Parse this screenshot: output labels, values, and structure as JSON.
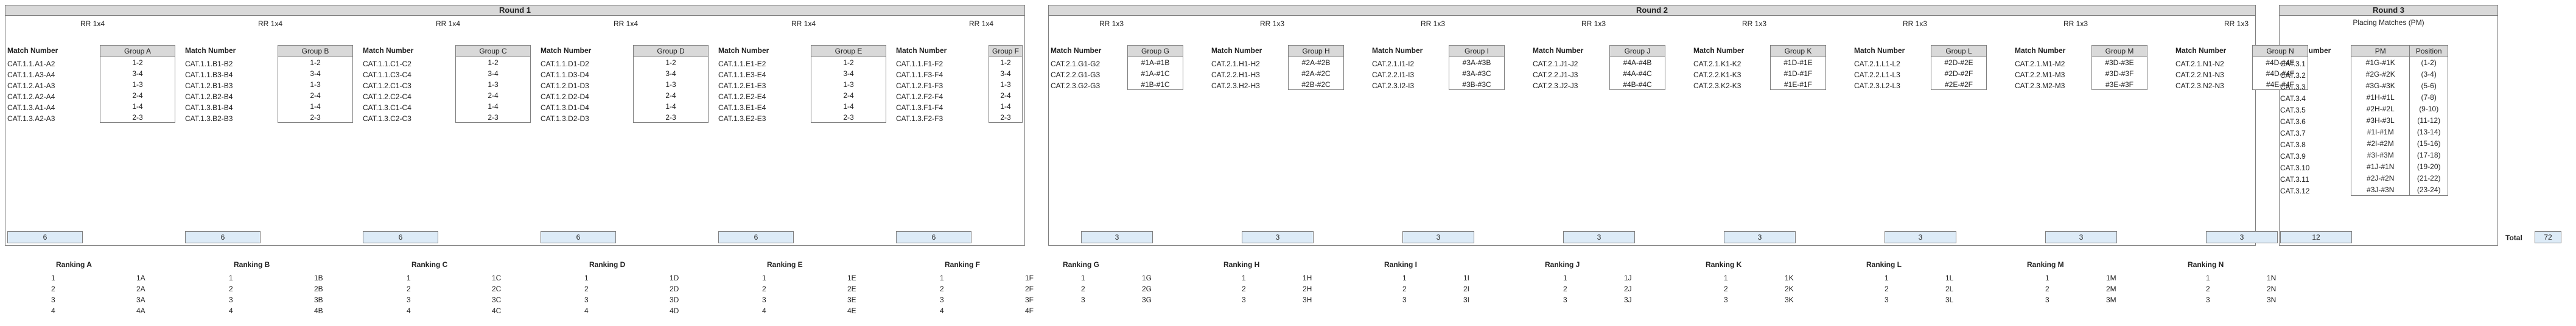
{
  "colors": {
    "header_bg": "#d9d9d9",
    "border": "#7f7f7f",
    "count_bg": "#ddebf7"
  },
  "rounds": [
    {
      "title": "Round 1"
    },
    {
      "title": "Round 2"
    },
    {
      "title": "Round 3"
    }
  ],
  "labels": {
    "match_number": "Match Number",
    "placing_matches": "Placing Matches (PM)",
    "pm": "PM",
    "position": "Position",
    "total": "Total",
    "total_value": "72"
  },
  "round1_groups": [
    {
      "rr": "RR 1x4",
      "group": "Group A",
      "matches": [
        "CAT.1.1.A1-A2",
        "CAT.1.1.A3-A4",
        "CAT.1.2.A1-A3",
        "CAT.1.2.A2-A4",
        "CAT.1.3.A1-A4",
        "CAT.1.3.A2-A3"
      ],
      "pairs": [
        "1-2",
        "3-4",
        "1-3",
        "2-4",
        "1-4",
        "2-3"
      ],
      "count": "6",
      "ranking": "Ranking A",
      "ranks": [
        "1A",
        "2A",
        "3A",
        "4A"
      ]
    },
    {
      "rr": "RR 1x4",
      "group": "Group B",
      "matches": [
        "CAT.1.1.B1-B2",
        "CAT.1.1.B3-B4",
        "CAT.1.2.B1-B3",
        "CAT.1.2.B2-B4",
        "CAT.1.3.B1-B4",
        "CAT.1.3.B2-B3"
      ],
      "pairs": [
        "1-2",
        "3-4",
        "1-3",
        "2-4",
        "1-4",
        "2-3"
      ],
      "count": "6",
      "ranking": "Ranking B",
      "ranks": [
        "1B",
        "2B",
        "3B",
        "4B"
      ]
    },
    {
      "rr": "RR 1x4",
      "group": "Group C",
      "matches": [
        "CAT.1.1.C1-C2",
        "CAT.1.1.C3-C4",
        "CAT.1.2.C1-C3",
        "CAT.1.2.C2-C4",
        "CAT.1.3.C1-C4",
        "CAT.1.3.C2-C3"
      ],
      "pairs": [
        "1-2",
        "3-4",
        "1-3",
        "2-4",
        "1-4",
        "2-3"
      ],
      "count": "6",
      "ranking": "Ranking C",
      "ranks": [
        "1C",
        "2C",
        "3C",
        "4C"
      ]
    },
    {
      "rr": "RR 1x4",
      "group": "Group D",
      "matches": [
        "CAT.1.1.D1-D2",
        "CAT.1.1.D3-D4",
        "CAT.1.2.D1-D3",
        "CAT.1.2.D2-D4",
        "CAT.1.3.D1-D4",
        "CAT.1.3.D2-D3"
      ],
      "pairs": [
        "1-2",
        "3-4",
        "1-3",
        "2-4",
        "1-4",
        "2-3"
      ],
      "count": "6",
      "ranking": "Ranking D",
      "ranks": [
        "1D",
        "2D",
        "3D",
        "4D"
      ]
    },
    {
      "rr": "RR 1x4",
      "group": "Group E",
      "matches": [
        "CAT.1.1.E1-E2",
        "CAT.1.1.E3-E4",
        "CAT.1.2.E1-E3",
        "CAT.1.2.E2-E4",
        "CAT.1.3.E1-E4",
        "CAT.1.3.E2-E3"
      ],
      "pairs": [
        "1-2",
        "3-4",
        "1-3",
        "2-4",
        "1-4",
        "2-3"
      ],
      "count": "6",
      "ranking": "Ranking E",
      "ranks": [
        "1E",
        "2E",
        "3E",
        "4E"
      ]
    },
    {
      "rr": "RR 1x4",
      "group": "Group F",
      "matches": [
        "CAT.1.1.F1-F2",
        "CAT.1.1.F3-F4",
        "CAT.1.2.F1-F3",
        "CAT.1.2.F2-F4",
        "CAT.1.3.F1-F4",
        "CAT.1.3.F2-F3"
      ],
      "pairs": [
        "1-2",
        "3-4",
        "1-3",
        "2-4",
        "1-4",
        "2-3"
      ],
      "count": "6",
      "ranking": "Ranking F",
      "ranks": [
        "1F",
        "2F",
        "3F",
        "4F"
      ]
    }
  ],
  "round2_groups": [
    {
      "rr": "RR 1x3",
      "group": "Group G",
      "matches": [
        "CAT.2.1.G1-G2",
        "CAT.2.2.G1-G3",
        "CAT.2.3.G2-G3"
      ],
      "pairs": [
        "#1A-#1B",
        "#1A-#1C",
        "#1B-#1C"
      ],
      "count": "3",
      "ranking": "Ranking G",
      "ranks": [
        "1G",
        "2G",
        "3G"
      ]
    },
    {
      "rr": "RR 1x3",
      "group": "Group H",
      "matches": [
        "CAT.2.1.H1-H2",
        "CAT.2.2.H1-H3",
        "CAT.2.3.H2-H3"
      ],
      "pairs": [
        "#2A-#2B",
        "#2A-#2C",
        "#2B-#2C"
      ],
      "count": "3",
      "ranking": "Ranking H",
      "ranks": [
        "1H",
        "2H",
        "3H"
      ]
    },
    {
      "rr": "RR 1x3",
      "group": "Group I",
      "matches": [
        "CAT.2.1.I1-I2",
        "CAT.2.2.I1-I3",
        "CAT.2.3.I2-I3"
      ],
      "pairs": [
        "#3A-#3B",
        "#3A-#3C",
        "#3B-#3C"
      ],
      "count": "3",
      "ranking": "Ranking I",
      "ranks": [
        "1I",
        "2I",
        "3I"
      ]
    },
    {
      "rr": "RR 1x3",
      "group": "Group J",
      "matches": [
        "CAT.2.1.J1-J2",
        "CAT.2.2.J1-J3",
        "CAT.2.3.J2-J3"
      ],
      "pairs": [
        "#4A-#4B",
        "#4A-#4C",
        "#4B-#4C"
      ],
      "count": "3",
      "ranking": "Ranking J",
      "ranks": [
        "1J",
        "2J",
        "3J"
      ]
    },
    {
      "rr": "RR 1x3",
      "group": "Group K",
      "matches": [
        "CAT.2.1.K1-K2",
        "CAT.2.2.K1-K3",
        "CAT.2.3.K2-K3"
      ],
      "pairs": [
        "#1D-#1E",
        "#1D-#1F",
        "#1E-#1F"
      ],
      "count": "3",
      "ranking": "Ranking K",
      "ranks": [
        "1K",
        "2K",
        "3K"
      ]
    },
    {
      "rr": "RR 1x3",
      "group": "Group L",
      "matches": [
        "CAT.2.1.L1-L2",
        "CAT.2.2.L1-L3",
        "CAT.2.3.L2-L3"
      ],
      "pairs": [
        "#2D-#2E",
        "#2D-#2F",
        "#2E-#2F"
      ],
      "count": "3",
      "ranking": "Ranking L",
      "ranks": [
        "1L",
        "2L",
        "3L"
      ]
    },
    {
      "rr": "RR 1x3",
      "group": "Group M",
      "matches": [
        "CAT.2.1.M1-M2",
        "CAT.2.2.M1-M3",
        "CAT.2.3.M2-M3"
      ],
      "pairs": [
        "#3D-#3E",
        "#3D-#3F",
        "#3E-#3F"
      ],
      "count": "3",
      "ranking": "Ranking M",
      "ranks": [
        "1M",
        "2M",
        "3M"
      ]
    },
    {
      "rr": "RR 1x3",
      "group": "Group N",
      "matches": [
        "CAT.2.1.N1-N2",
        "CAT.2.2.N1-N3",
        "CAT.2.3.N2-N3"
      ],
      "pairs": [
        "#4D-#4E",
        "#4D-#4F",
        "#4E-#4F"
      ],
      "count": "3",
      "ranking": "Ranking N",
      "ranks": [
        "1N",
        "2N",
        "3N"
      ]
    }
  ],
  "round3": {
    "matches": [
      "CAT.3.1",
      "CAT.3.2",
      "CAT.3.3",
      "CAT.3.4",
      "CAT.3.5",
      "CAT.3.6",
      "CAT.3.7",
      "CAT.3.8",
      "CAT.3.9",
      "CAT.3.10",
      "CAT.3.11",
      "CAT.3.12"
    ],
    "pm": [
      "#1G-#1K",
      "#2G-#2K",
      "#3G-#3K",
      "#1H-#1L",
      "#2H-#2L",
      "#3H-#3L",
      "#1I-#1M",
      "#2I-#2M",
      "#3I-#3M",
      "#1J-#1N",
      "#2J-#2N",
      "#3J-#3N"
    ],
    "positions": [
      "(1-2)",
      "(3-4)",
      "(5-6)",
      "(7-8)",
      "(9-10)",
      "(11-12)",
      "(13-14)",
      "(15-16)",
      "(17-18)",
      "(19-20)",
      "(21-22)",
      "(23-24)"
    ],
    "count": "12"
  }
}
